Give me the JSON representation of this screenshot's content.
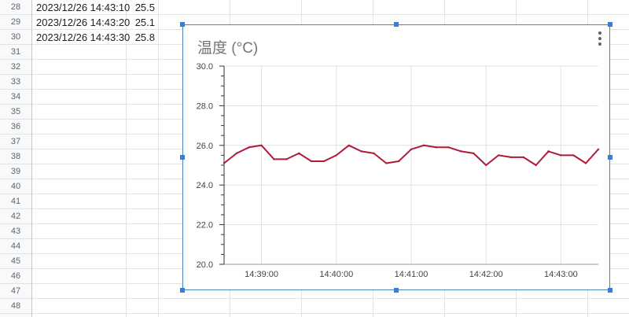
{
  "sheet": {
    "row_numbers": [
      "28",
      "29",
      "30",
      "31",
      "32",
      "33",
      "34",
      "35",
      "36",
      "37",
      "38",
      "39",
      "40",
      "41",
      "42",
      "43",
      "44",
      "45",
      "46",
      "47",
      "48"
    ],
    "rows": [
      {
        "timestamp": "2023/12/26 14:43:10",
        "value": "25.5"
      },
      {
        "timestamp": "2023/12/26 14:43:20",
        "value": "25.1"
      },
      {
        "timestamp": "2023/12/26 14:43:30",
        "value": "25.8"
      }
    ]
  },
  "chart_data": {
    "type": "line",
    "title": "温度 (°C)",
    "xlabel": "",
    "ylabel": "",
    "ylim": [
      20.0,
      30.0
    ],
    "y_ticks": [
      "20.0",
      "22.0",
      "24.0",
      "26.0",
      "28.0",
      "30.0"
    ],
    "x_tick_labels": [
      "14:39:00",
      "14:40:00",
      "14:41:00",
      "14:42:00",
      "14:43:00"
    ],
    "x_range": [
      "14:38:30",
      "14:43:30"
    ],
    "grid": true,
    "line_color": "#b01a3a",
    "series": [
      {
        "x": [
          "14:38:30",
          "14:38:40",
          "14:38:50",
          "14:39:00",
          "14:39:10",
          "14:39:20",
          "14:39:30",
          "14:39:40",
          "14:39:50",
          "14:40:00",
          "14:40:10",
          "14:40:20",
          "14:40:30",
          "14:40:40",
          "14:40:50",
          "14:41:00",
          "14:41:10",
          "14:41:20",
          "14:41:30",
          "14:41:40",
          "14:41:50",
          "14:42:00",
          "14:42:10",
          "14:42:20",
          "14:42:30",
          "14:42:40",
          "14:42:50",
          "14:43:00",
          "14:43:10",
          "14:43:20",
          "14:43:30"
        ],
        "values": [
          25.1,
          25.6,
          25.9,
          26.0,
          25.3,
          25.3,
          25.6,
          25.2,
          25.2,
          25.5,
          26.0,
          25.7,
          25.6,
          25.1,
          25.2,
          25.8,
          26.0,
          25.9,
          25.9,
          25.7,
          25.6,
          25.0,
          25.5,
          25.4,
          25.4,
          25.0,
          25.7,
          25.5,
          25.5,
          25.1,
          25.8
        ]
      }
    ]
  }
}
